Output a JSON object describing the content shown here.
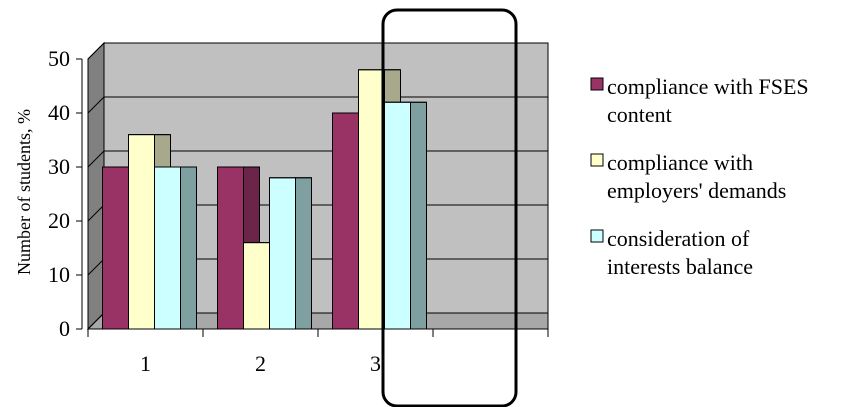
{
  "chart_data": {
    "type": "bar",
    "style": "3d-clustered",
    "categories": [
      "1",
      "2",
      "3"
    ],
    "series": [
      {
        "name": "compliance with FSES content",
        "values": [
          30,
          30,
          40
        ],
        "color": "#993366",
        "side_color": "#6b2548",
        "legend_lines": [
          "compliance with FSES",
          "content"
        ]
      },
      {
        "name": "compliance with employers' demands",
        "values": [
          36,
          16,
          48
        ],
        "color": "#ffffcc",
        "side_color": "#a8a88c",
        "legend_lines": [
          "compliance with",
          "employers' demands"
        ]
      },
      {
        "name": "consideration of interests balance",
        "values": [
          30,
          28,
          42
        ],
        "color": "#ccffff",
        "side_color": "#7fa0a0",
        "legend_lines": [
          "consideration of",
          "interests balance"
        ]
      }
    ],
    "ylabel": "Number of students, %",
    "xlabel": "",
    "ylim": [
      0,
      50
    ],
    "yticks": [
      0,
      10,
      20,
      30,
      40,
      50
    ],
    "grid": true,
    "legend": "right",
    "plot_background": "#c0c0c0",
    "wall_color": "#808080",
    "annotation": "rounded rectangle highlighting an empty category slot"
  }
}
